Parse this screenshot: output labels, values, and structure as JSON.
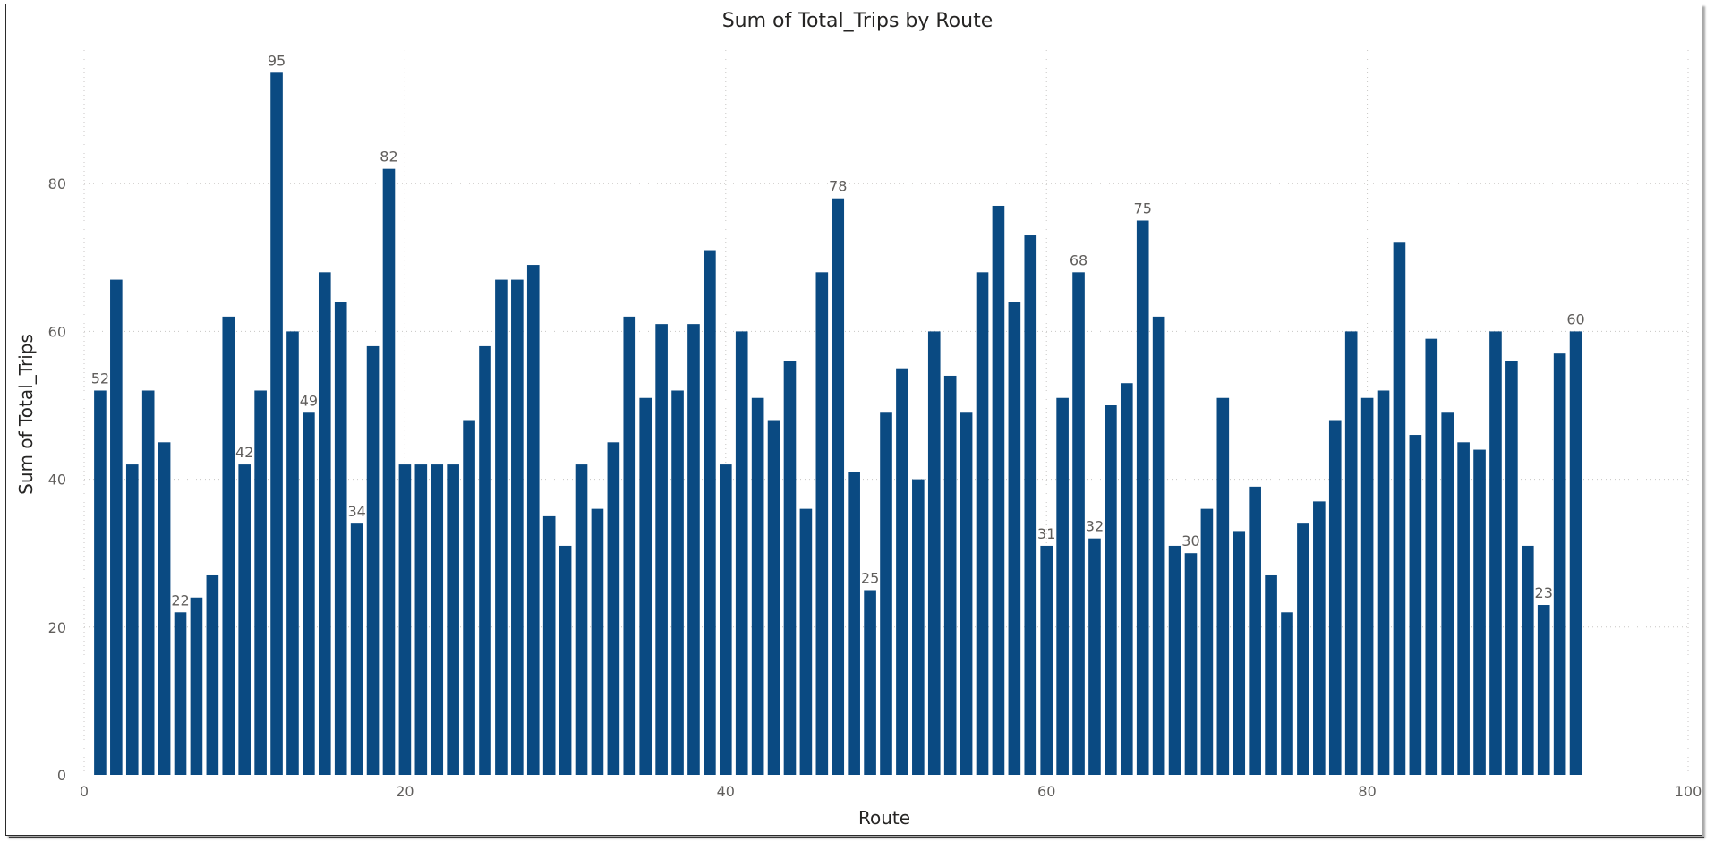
{
  "chart_data": {
    "type": "bar",
    "title": "Sum of Total_Trips by Route",
    "xlabel": "Route",
    "ylabel": "Sum of Total_Trips",
    "xlim": [
      0,
      100
    ],
    "ylim": [
      0,
      100
    ],
    "xticks": [
      0,
      20,
      40,
      60,
      80,
      100
    ],
    "yticks": [
      0,
      20,
      40,
      60,
      80
    ],
    "grid": true,
    "bar_color": "#0a4a82",
    "x": [
      1,
      2,
      3,
      4,
      5,
      6,
      7,
      8,
      9,
      10,
      11,
      12,
      13,
      14,
      15,
      16,
      17,
      18,
      19,
      20,
      21,
      22,
      23,
      24,
      25,
      26,
      27,
      28,
      29,
      30,
      31,
      32,
      33,
      34,
      35,
      36,
      37,
      38,
      39,
      40,
      41,
      42,
      43,
      44,
      45,
      46,
      47,
      48,
      49,
      50,
      51,
      52,
      53,
      54,
      55,
      56,
      57,
      58,
      59,
      60,
      61,
      62,
      63,
      64,
      65,
      66,
      67,
      68,
      69,
      70,
      71,
      72,
      73,
      74,
      75,
      76,
      77,
      78,
      79,
      80,
      81,
      82,
      83,
      84,
      85,
      86,
      87,
      88,
      89,
      90,
      91,
      92,
      93
    ],
    "values": [
      52,
      67,
      42,
      52,
      45,
      22,
      24,
      27,
      62,
      42,
      52,
      95,
      60,
      49,
      68,
      64,
      34,
      58,
      82,
      42,
      42,
      42,
      42,
      48,
      58,
      67,
      67,
      69,
      35,
      31,
      42,
      36,
      45,
      62,
      51,
      61,
      52,
      61,
      71,
      42,
      60,
      51,
      48,
      56,
      36,
      68,
      78,
      41,
      25,
      49,
      55,
      40,
      60,
      54,
      49,
      68,
      77,
      64,
      73,
      31,
      51,
      68,
      32,
      50,
      53,
      75,
      62,
      31,
      30,
      36,
      51,
      33,
      39,
      27,
      22,
      34,
      37,
      48,
      60,
      51,
      52,
      72,
      46,
      59,
      49,
      45,
      44,
      60,
      56,
      31,
      23,
      57,
      60
    ],
    "data_labels": [
      {
        "x": 1,
        "label": "52"
      },
      {
        "x": 6,
        "label": "22"
      },
      {
        "x": 10,
        "label": "42"
      },
      {
        "x": 12,
        "label": "95"
      },
      {
        "x": 14,
        "label": "49"
      },
      {
        "x": 17,
        "label": "34"
      },
      {
        "x": 19,
        "label": "82"
      },
      {
        "x": 47,
        "label": "78"
      },
      {
        "x": 49,
        "label": "25"
      },
      {
        "x": 60,
        "label": "31"
      },
      {
        "x": 62,
        "label": "68"
      },
      {
        "x": 63,
        "label": "32"
      },
      {
        "x": 66,
        "label": "75"
      },
      {
        "x": 69,
        "label": "30"
      },
      {
        "x": 91,
        "label": "23"
      },
      {
        "x": 93,
        "label": "60"
      }
    ]
  }
}
